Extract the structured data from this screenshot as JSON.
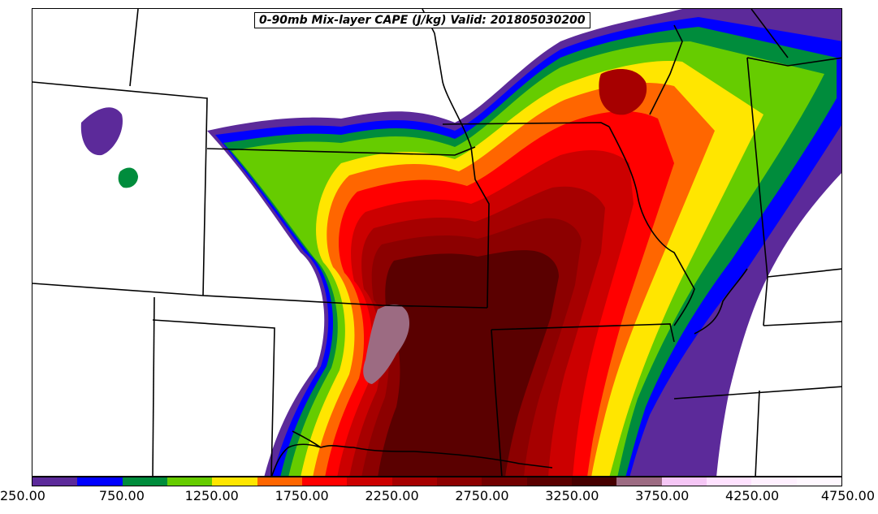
{
  "title": "0-90mb Mix-layer CAPE (J/kg) Valid: 201805030200",
  "colorbar": {
    "colors": [
      "#5c2a9a",
      "#0000ff",
      "#008c3c",
      "#66cc00",
      "#ffe600",
      "#ff6600",
      "#ff0000",
      "#cc0000",
      "#a60000",
      "#8c0000",
      "#720000",
      "#5a0000",
      "#460000",
      "#9c6b82",
      "#f5c6f5",
      "#ffe2ff",
      "#fff0ff",
      "#fff8ff"
    ],
    "tick_labels": [
      "250.00",
      "750.00",
      "1250.00",
      "1750.00",
      "2250.00",
      "2750.00",
      "3250.00",
      "3750.00",
      "4250.00",
      "4750.00"
    ]
  },
  "map": {
    "shading": "CAPE filled contours",
    "boundaries": "US state borders and coastlines"
  }
}
